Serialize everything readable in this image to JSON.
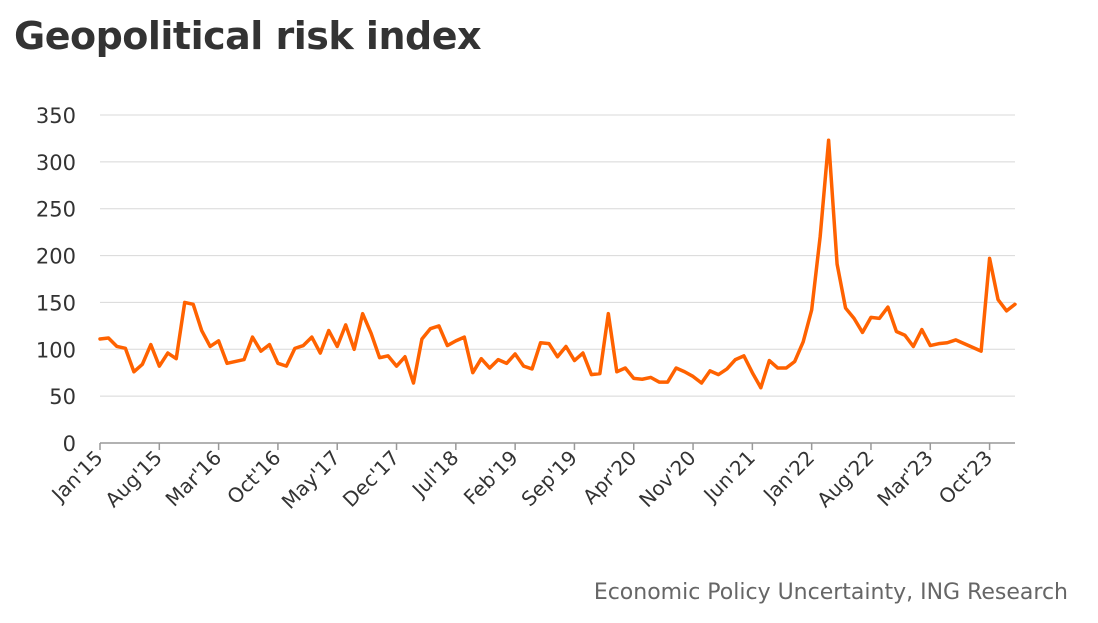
{
  "chart_data": {
    "type": "line",
    "title": "Geopolitical risk index",
    "source": "Economic Policy Uncertainty, ING Research",
    "color": "#ff6200",
    "ylim": [
      0,
      350
    ],
    "yticks": [
      0,
      50,
      100,
      150,
      200,
      250,
      300,
      350
    ],
    "x_tick_labels": [
      "Jan'15",
      "Aug'15",
      "Mar'16",
      "Oct'16",
      "May'17",
      "Dec'17",
      "Jul'18",
      "Feb'19",
      "Sep'19",
      "Apr'20",
      "Nov'20",
      "Jun'21",
      "Jan'22",
      "Aug'22",
      "Mar'23",
      "Oct'23"
    ],
    "grid": true,
    "legend": "none",
    "series": [
      {
        "values": [
          111,
          112,
          103,
          101,
          76,
          84,
          105,
          82,
          96,
          90,
          150,
          148,
          120,
          103,
          109,
          85,
          87,
          89,
          113,
          98,
          105,
          85,
          82,
          101,
          104,
          113,
          96,
          120,
          103,
          126,
          100,
          138,
          117,
          91,
          93,
          82,
          92,
          64,
          111,
          122,
          125,
          104,
          109,
          113,
          75,
          90,
          80,
          89,
          85,
          95,
          82,
          79,
          107,
          106,
          92,
          103,
          88,
          96,
          73,
          74,
          138,
          76,
          80,
          69,
          68,
          70,
          65,
          65,
          80,
          76,
          71,
          64,
          77,
          73,
          79,
          89,
          93,
          75,
          59,
          88,
          80,
          80,
          87,
          108,
          142,
          220,
          323,
          191,
          144,
          133,
          118,
          134,
          133,
          145,
          119,
          115,
          103,
          121,
          104,
          106,
          107,
          110,
          106,
          102,
          98,
          197,
          153,
          141,
          148
        ]
      }
    ]
  }
}
